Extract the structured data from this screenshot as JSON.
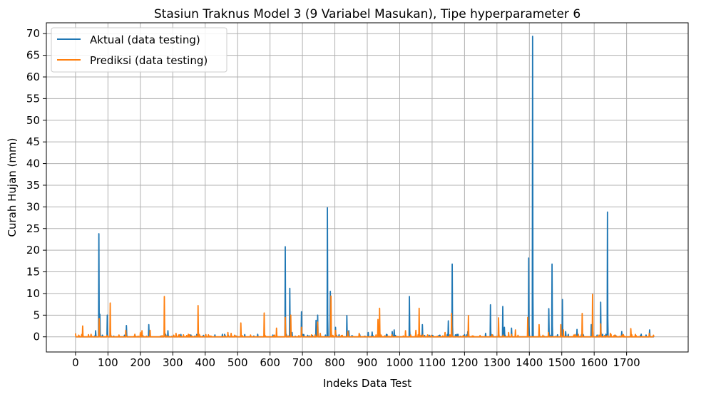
{
  "chart_data": {
    "type": "line",
    "title": "Stasiun Traknus Model 3 (9 Variabel Masukan), Tipe hyperparameter 6",
    "xlabel": "Indeks Data Test",
    "ylabel": "Curah Hujan (mm)",
    "xlim": [
      -90,
      1890
    ],
    "ylim": [
      -3.5,
      72.5
    ],
    "x_ticks": [
      0,
      100,
      200,
      300,
      400,
      500,
      600,
      700,
      800,
      900,
      1000,
      1100,
      1200,
      1300,
      1400,
      1500,
      1600,
      1700
    ],
    "y_ticks": [
      0,
      5,
      10,
      15,
      20,
      25,
      30,
      35,
      40,
      45,
      50,
      55,
      60,
      65,
      70
    ],
    "grid": true,
    "legend_position": "top-left",
    "n_points": 1785,
    "series": [
      {
        "name": "Aktual (data testing)",
        "color": "#1f77b4",
        "spikes": [
          [
            62,
            1.4
          ],
          [
            72,
            23.8
          ],
          [
            75,
            5.2
          ],
          [
            98,
            5.0
          ],
          [
            157,
            2.6
          ],
          [
            226,
            2.8
          ],
          [
            274,
            1.0
          ],
          [
            285,
            1.4
          ],
          [
            647,
            20.8
          ],
          [
            661,
            11.2
          ],
          [
            668,
            1.0
          ],
          [
            697,
            5.8
          ],
          [
            742,
            3.8
          ],
          [
            747,
            5.0
          ],
          [
            777,
            29.8
          ],
          [
            786,
            10.5
          ],
          [
            802,
            2.2
          ],
          [
            837,
            4.9
          ],
          [
            843,
            1.4
          ],
          [
            903,
            1.0
          ],
          [
            915,
            1.1
          ],
          [
            977,
            1.2
          ],
          [
            983,
            1.6
          ],
          [
            1030,
            9.3
          ],
          [
            1070,
            2.8
          ],
          [
            1150,
            3.7
          ],
          [
            1162,
            16.8
          ],
          [
            1210,
            1.2
          ],
          [
            1265,
            0.8
          ],
          [
            1280,
            7.4
          ],
          [
            1318,
            7.0
          ],
          [
            1323,
            2.2
          ],
          [
            1345,
            2.0
          ],
          [
            1398,
            18.2
          ],
          [
            1410,
            69.4
          ],
          [
            1470,
            16.8
          ],
          [
            1460,
            6.5
          ],
          [
            1502,
            8.6
          ],
          [
            1512,
            1.2
          ],
          [
            1547,
            1.7
          ],
          [
            1591,
            2.8
          ],
          [
            1620,
            8.0
          ],
          [
            1641,
            28.8
          ],
          [
            1685,
            1.2
          ],
          [
            1745,
            0.6
          ],
          [
            1771,
            1.6
          ]
        ]
      },
      {
        "name": "Prediksi (data testing)",
        "color": "#ff7f0e",
        "spikes": [
          [
            0,
            0.8
          ],
          [
            22,
            2.5
          ],
          [
            40,
            0.5
          ],
          [
            73,
            4.2
          ],
          [
            107,
            7.8
          ],
          [
            155,
            1.5
          ],
          [
            200,
            1.0
          ],
          [
            205,
            1.4
          ],
          [
            230,
            1.5
          ],
          [
            274,
            9.3
          ],
          [
            310,
            0.8
          ],
          [
            378,
            7.2
          ],
          [
            470,
            1.0
          ],
          [
            480,
            0.8
          ],
          [
            510,
            3.2
          ],
          [
            582,
            5.5
          ],
          [
            620,
            2.0
          ],
          [
            647,
            4.5
          ],
          [
            664,
            5.0
          ],
          [
            697,
            2.2
          ],
          [
            747,
            3.4
          ],
          [
            755,
            0.8
          ],
          [
            788,
            9.4
          ],
          [
            802,
            1.5
          ],
          [
            840,
            1.2
          ],
          [
            875,
            0.8
          ],
          [
            933,
            4.0
          ],
          [
            938,
            6.6
          ],
          [
            1018,
            1.4
          ],
          [
            1050,
            1.5
          ],
          [
            1060,
            6.6
          ],
          [
            1140,
            1.0
          ],
          [
            1160,
            5.4
          ],
          [
            1212,
            4.9
          ],
          [
            1305,
            4.4
          ],
          [
            1336,
            1.0
          ],
          [
            1357,
            1.6
          ],
          [
            1395,
            4.5
          ],
          [
            1430,
            2.8
          ],
          [
            1459,
            1.0
          ],
          [
            1497,
            2.8
          ],
          [
            1505,
            1.6
          ],
          [
            1563,
            5.4
          ],
          [
            1595,
            9.8
          ],
          [
            1620,
            3.0
          ],
          [
            1650,
            0.8
          ],
          [
            1713,
            1.9
          ],
          [
            1770,
            0.8
          ]
        ]
      }
    ]
  }
}
